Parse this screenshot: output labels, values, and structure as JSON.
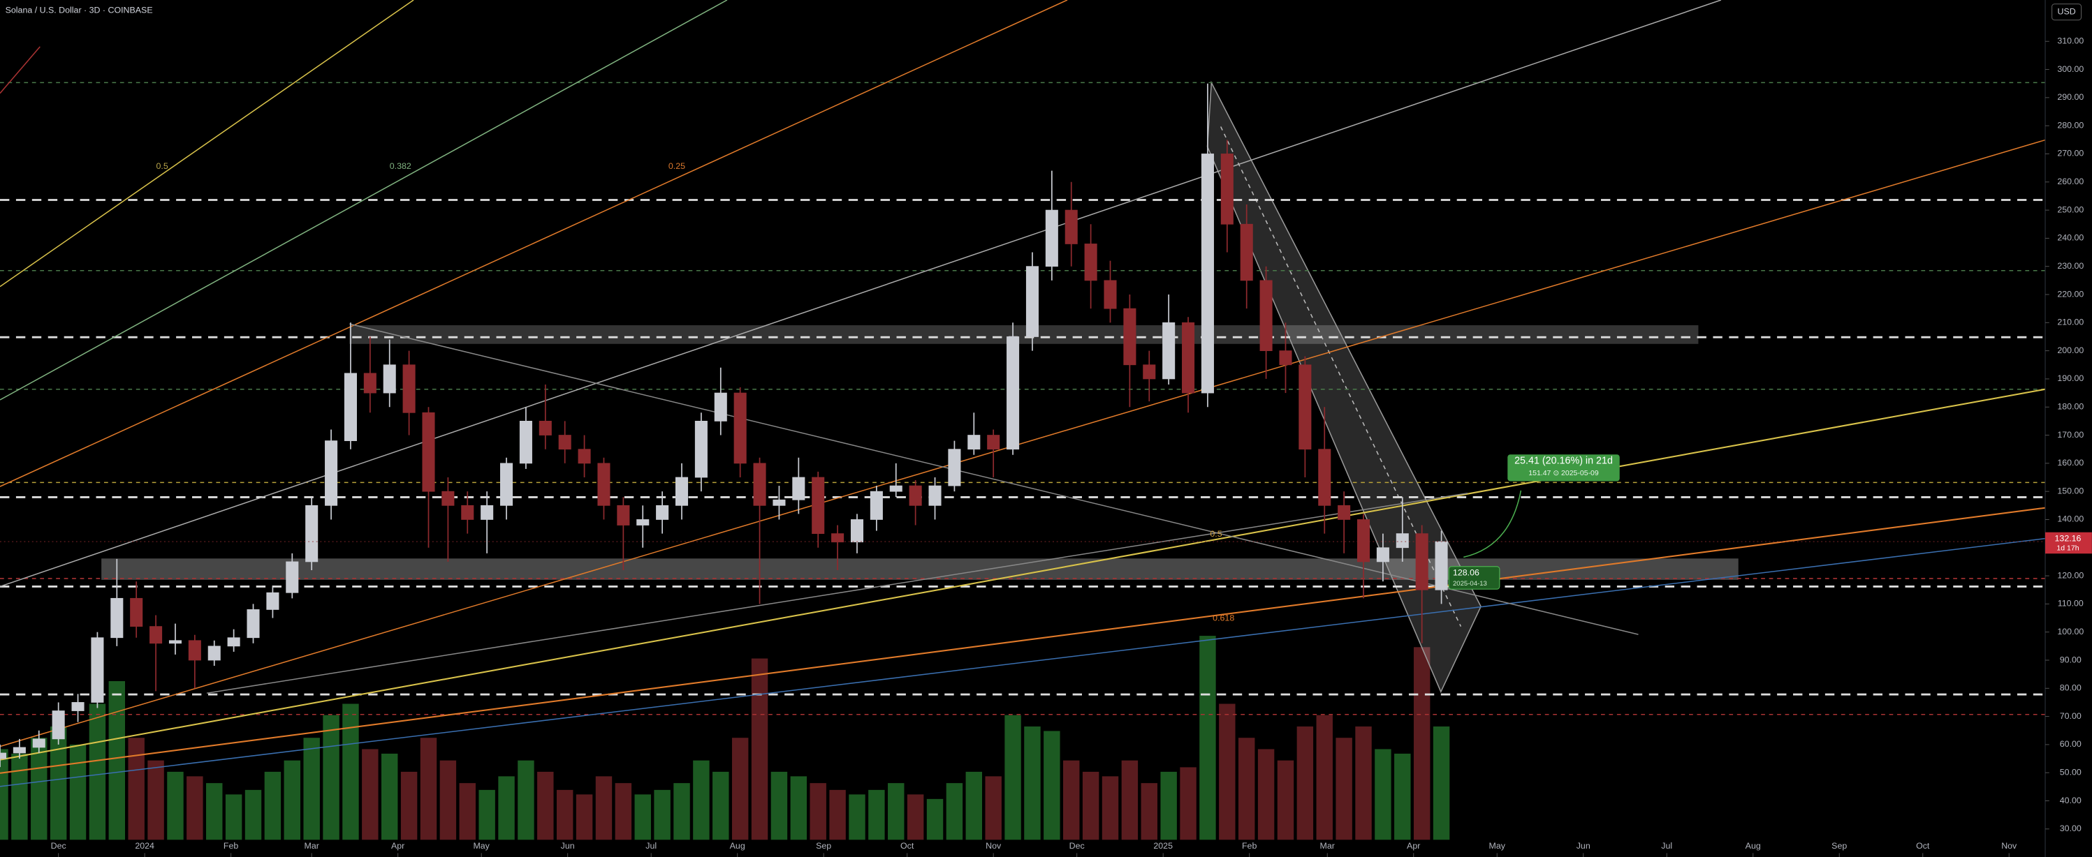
{
  "chart_data": {
    "type": "candlestick",
    "title": "Solana / U.S. Dollar · 3D · COINBASE",
    "currency": "USD",
    "x": [
      -21,
      -14,
      -7,
      0,
      7,
      14,
      21,
      28,
      35,
      42,
      49,
      56,
      63,
      70,
      77,
      84,
      91,
      98,
      105,
      112,
      119,
      126,
      133,
      140,
      147,
      154,
      161,
      168,
      175,
      182,
      189,
      196,
      203,
      210,
      217,
      224,
      231,
      238,
      245,
      252,
      259,
      266,
      273,
      280,
      287,
      294,
      301,
      308,
      315,
      322,
      329,
      336,
      343,
      350,
      357,
      364,
      371,
      378,
      385,
      392,
      399,
      406,
      413,
      420,
      427,
      434,
      441,
      448,
      455,
      462,
      469,
      476,
      483,
      490,
      497
    ],
    "open": [
      55,
      57,
      59,
      62,
      72,
      75,
      98,
      112,
      102,
      96,
      97,
      90,
      95,
      98,
      108,
      114,
      125,
      145,
      168,
      192,
      185,
      195,
      178,
      150,
      145,
      140,
      145,
      160,
      175,
      170,
      165,
      160,
      145,
      138,
      140,
      145,
      155,
      175,
      185,
      160,
      145,
      147,
      155,
      135,
      132,
      140,
      150,
      152,
      145,
      152,
      165,
      170,
      165,
      205,
      230,
      250,
      238,
      225,
      215,
      195,
      190,
      210,
      185,
      270,
      245,
      225,
      200,
      195,
      165,
      145,
      140,
      125,
      130,
      135,
      115
    ],
    "high": [
      60,
      62,
      65,
      75,
      78,
      100,
      126,
      118,
      106,
      103,
      99,
      97,
      101,
      110,
      116,
      128,
      148,
      172,
      210,
      205,
      204,
      200,
      180,
      155,
      150,
      150,
      162,
      180,
      188,
      175,
      170,
      162,
      148,
      145,
      150,
      160,
      178,
      194,
      187,
      162,
      152,
      162,
      157,
      138,
      142,
      152,
      160,
      154,
      155,
      168,
      178,
      172,
      210,
      235,
      264,
      260,
      245,
      232,
      220,
      200,
      220,
      212,
      295,
      275,
      252,
      230,
      210,
      198,
      180,
      150,
      142,
      135,
      148,
      138,
      136
    ],
    "low": [
      52,
      55,
      57,
      60,
      68,
      73,
      95,
      98,
      79,
      92,
      80,
      88,
      93,
      96,
      105,
      112,
      122,
      140,
      165,
      178,
      180,
      170,
      130,
      125,
      135,
      128,
      140,
      158,
      165,
      160,
      155,
      140,
      122,
      130,
      135,
      140,
      150,
      170,
      155,
      110,
      140,
      142,
      130,
      122,
      128,
      136,
      148,
      138,
      140,
      150,
      163,
      155,
      163,
      200,
      225,
      230,
      215,
      210,
      180,
      182,
      188,
      178,
      180,
      235,
      215,
      190,
      185,
      155,
      135,
      128,
      112,
      118,
      125,
      96,
      110
    ],
    "close": [
      57,
      59,
      62,
      72,
      75,
      98,
      112,
      102,
      96,
      97,
      90,
      95,
      98,
      108,
      114,
      125,
      145,
      168,
      192,
      185,
      195,
      178,
      150,
      145,
      140,
      145,
      160,
      175,
      170,
      165,
      160,
      145,
      138,
      140,
      145,
      155,
      175,
      185,
      160,
      145,
      147,
      155,
      135,
      132,
      140,
      150,
      152,
      145,
      152,
      165,
      170,
      165,
      205,
      230,
      250,
      238,
      225,
      215,
      195,
      190,
      210,
      185,
      270,
      245,
      225,
      200,
      195,
      165,
      145,
      140,
      125,
      130,
      135,
      115,
      132.16
    ],
    "volume": [
      40,
      38,
      45,
      50,
      42,
      60,
      70,
      45,
      35,
      30,
      28,
      25,
      20,
      22,
      30,
      35,
      45,
      55,
      60,
      40,
      38,
      30,
      45,
      35,
      25,
      22,
      28,
      35,
      30,
      22,
      20,
      28,
      25,
      20,
      22,
      25,
      35,
      30,
      45,
      80,
      30,
      28,
      25,
      22,
      20,
      22,
      25,
      20,
      18,
      25,
      30,
      28,
      55,
      50,
      48,
      35,
      30,
      28,
      35,
      25,
      30,
      32,
      90,
      60,
      45,
      40,
      35,
      50,
      55,
      45,
      50,
      40,
      38,
      85,
      50
    ],
    "up_color": "#c9ccd3",
    "down_color": "#8e2a2e",
    "volume_up_color": "#1c5a22",
    "volume_down_color": "#5a1c1f",
    "grid": false,
    "xlim": [
      -21,
      714
    ],
    "ylim": [
      20,
      324.7
    ],
    "xticks": [
      {
        "value": 0,
        "label": "Dec"
      },
      {
        "value": 31,
        "label": "2024"
      },
      {
        "value": 62,
        "label": "Feb"
      },
      {
        "value": 91,
        "label": "Mar"
      },
      {
        "value": 122,
        "label": "Apr"
      },
      {
        "value": 152,
        "label": "May"
      },
      {
        "value": 183,
        "label": "Jun"
      },
      {
        "value": 213,
        "label": "Jul"
      },
      {
        "value": 244,
        "label": "Aug"
      },
      {
        "value": 275,
        "label": "Sep"
      },
      {
        "value": 305,
        "label": "Oct"
      },
      {
        "value": 336,
        "label": "Nov"
      },
      {
        "value": 366,
        "label": "Dec"
      },
      {
        "value": 397,
        "label": "2025"
      },
      {
        "value": 428,
        "label": "Feb"
      },
      {
        "value": 456,
        "label": "Mar"
      },
      {
        "value": 487,
        "label": "Apr"
      },
      {
        "value": 517,
        "label": "May"
      },
      {
        "value": 548,
        "label": "Jun"
      },
      {
        "value": 578,
        "label": "Jul"
      },
      {
        "value": 609,
        "label": "Aug"
      },
      {
        "value": 640,
        "label": "Sep"
      },
      {
        "value": 670,
        "label": "Oct"
      },
      {
        "value": 701,
        "label": "Nov"
      }
    ],
    "yticks": [
      {
        "value": 30,
        "label": "30.00"
      },
      {
        "value": 40,
        "label": "40.00"
      },
      {
        "value": 50,
        "label": "50.00"
      },
      {
        "value": 60,
        "label": "60.00"
      },
      {
        "value": 70,
        "label": "70.00"
      },
      {
        "value": 80,
        "label": "80.00"
      },
      {
        "value": 90,
        "label": "90.00"
      },
      {
        "value": 100,
        "label": "100.00"
      },
      {
        "value": 110,
        "label": "110.00"
      },
      {
        "value": 120,
        "label": "120.00"
      },
      {
        "value": 130,
        "label": "130.00"
      },
      {
        "value": 140,
        "label": "140.00"
      },
      {
        "value": 150,
        "label": "150.00"
      },
      {
        "value": 160,
        "label": "160.00"
      },
      {
        "value": 170,
        "label": "170.00"
      },
      {
        "value": 180,
        "label": "180.00"
      },
      {
        "value": 190,
        "label": "190.00"
      },
      {
        "value": 200,
        "label": "200.00"
      },
      {
        "value": 210,
        "label": "210.00"
      },
      {
        "value": 220,
        "label": "220.00"
      },
      {
        "value": 230,
        "label": "230.00"
      },
      {
        "value": 240,
        "label": "240.00"
      },
      {
        "value": 250,
        "label": "250.00"
      },
      {
        "value": 260,
        "label": "260.00"
      },
      {
        "value": 270,
        "label": "270.00"
      },
      {
        "value": 280,
        "label": "280.00"
      },
      {
        "value": 290,
        "label": "290.00"
      },
      {
        "value": 300,
        "label": "300.00"
      },
      {
        "value": 310,
        "label": "310.00"
      }
    ],
    "last_price": 132.16,
    "countdown": "1d 17h",
    "annotations": [
      "0.5",
      "0.382",
      "0.25",
      "0.5",
      "0.618"
    ],
    "measure": {
      "text": "25.41 (20.16%) in 21d",
      "detail": "151.47 ⊙ 2025-05-09"
    },
    "marker": {
      "price": "128.06",
      "date": "2025-04-13"
    }
  }
}
